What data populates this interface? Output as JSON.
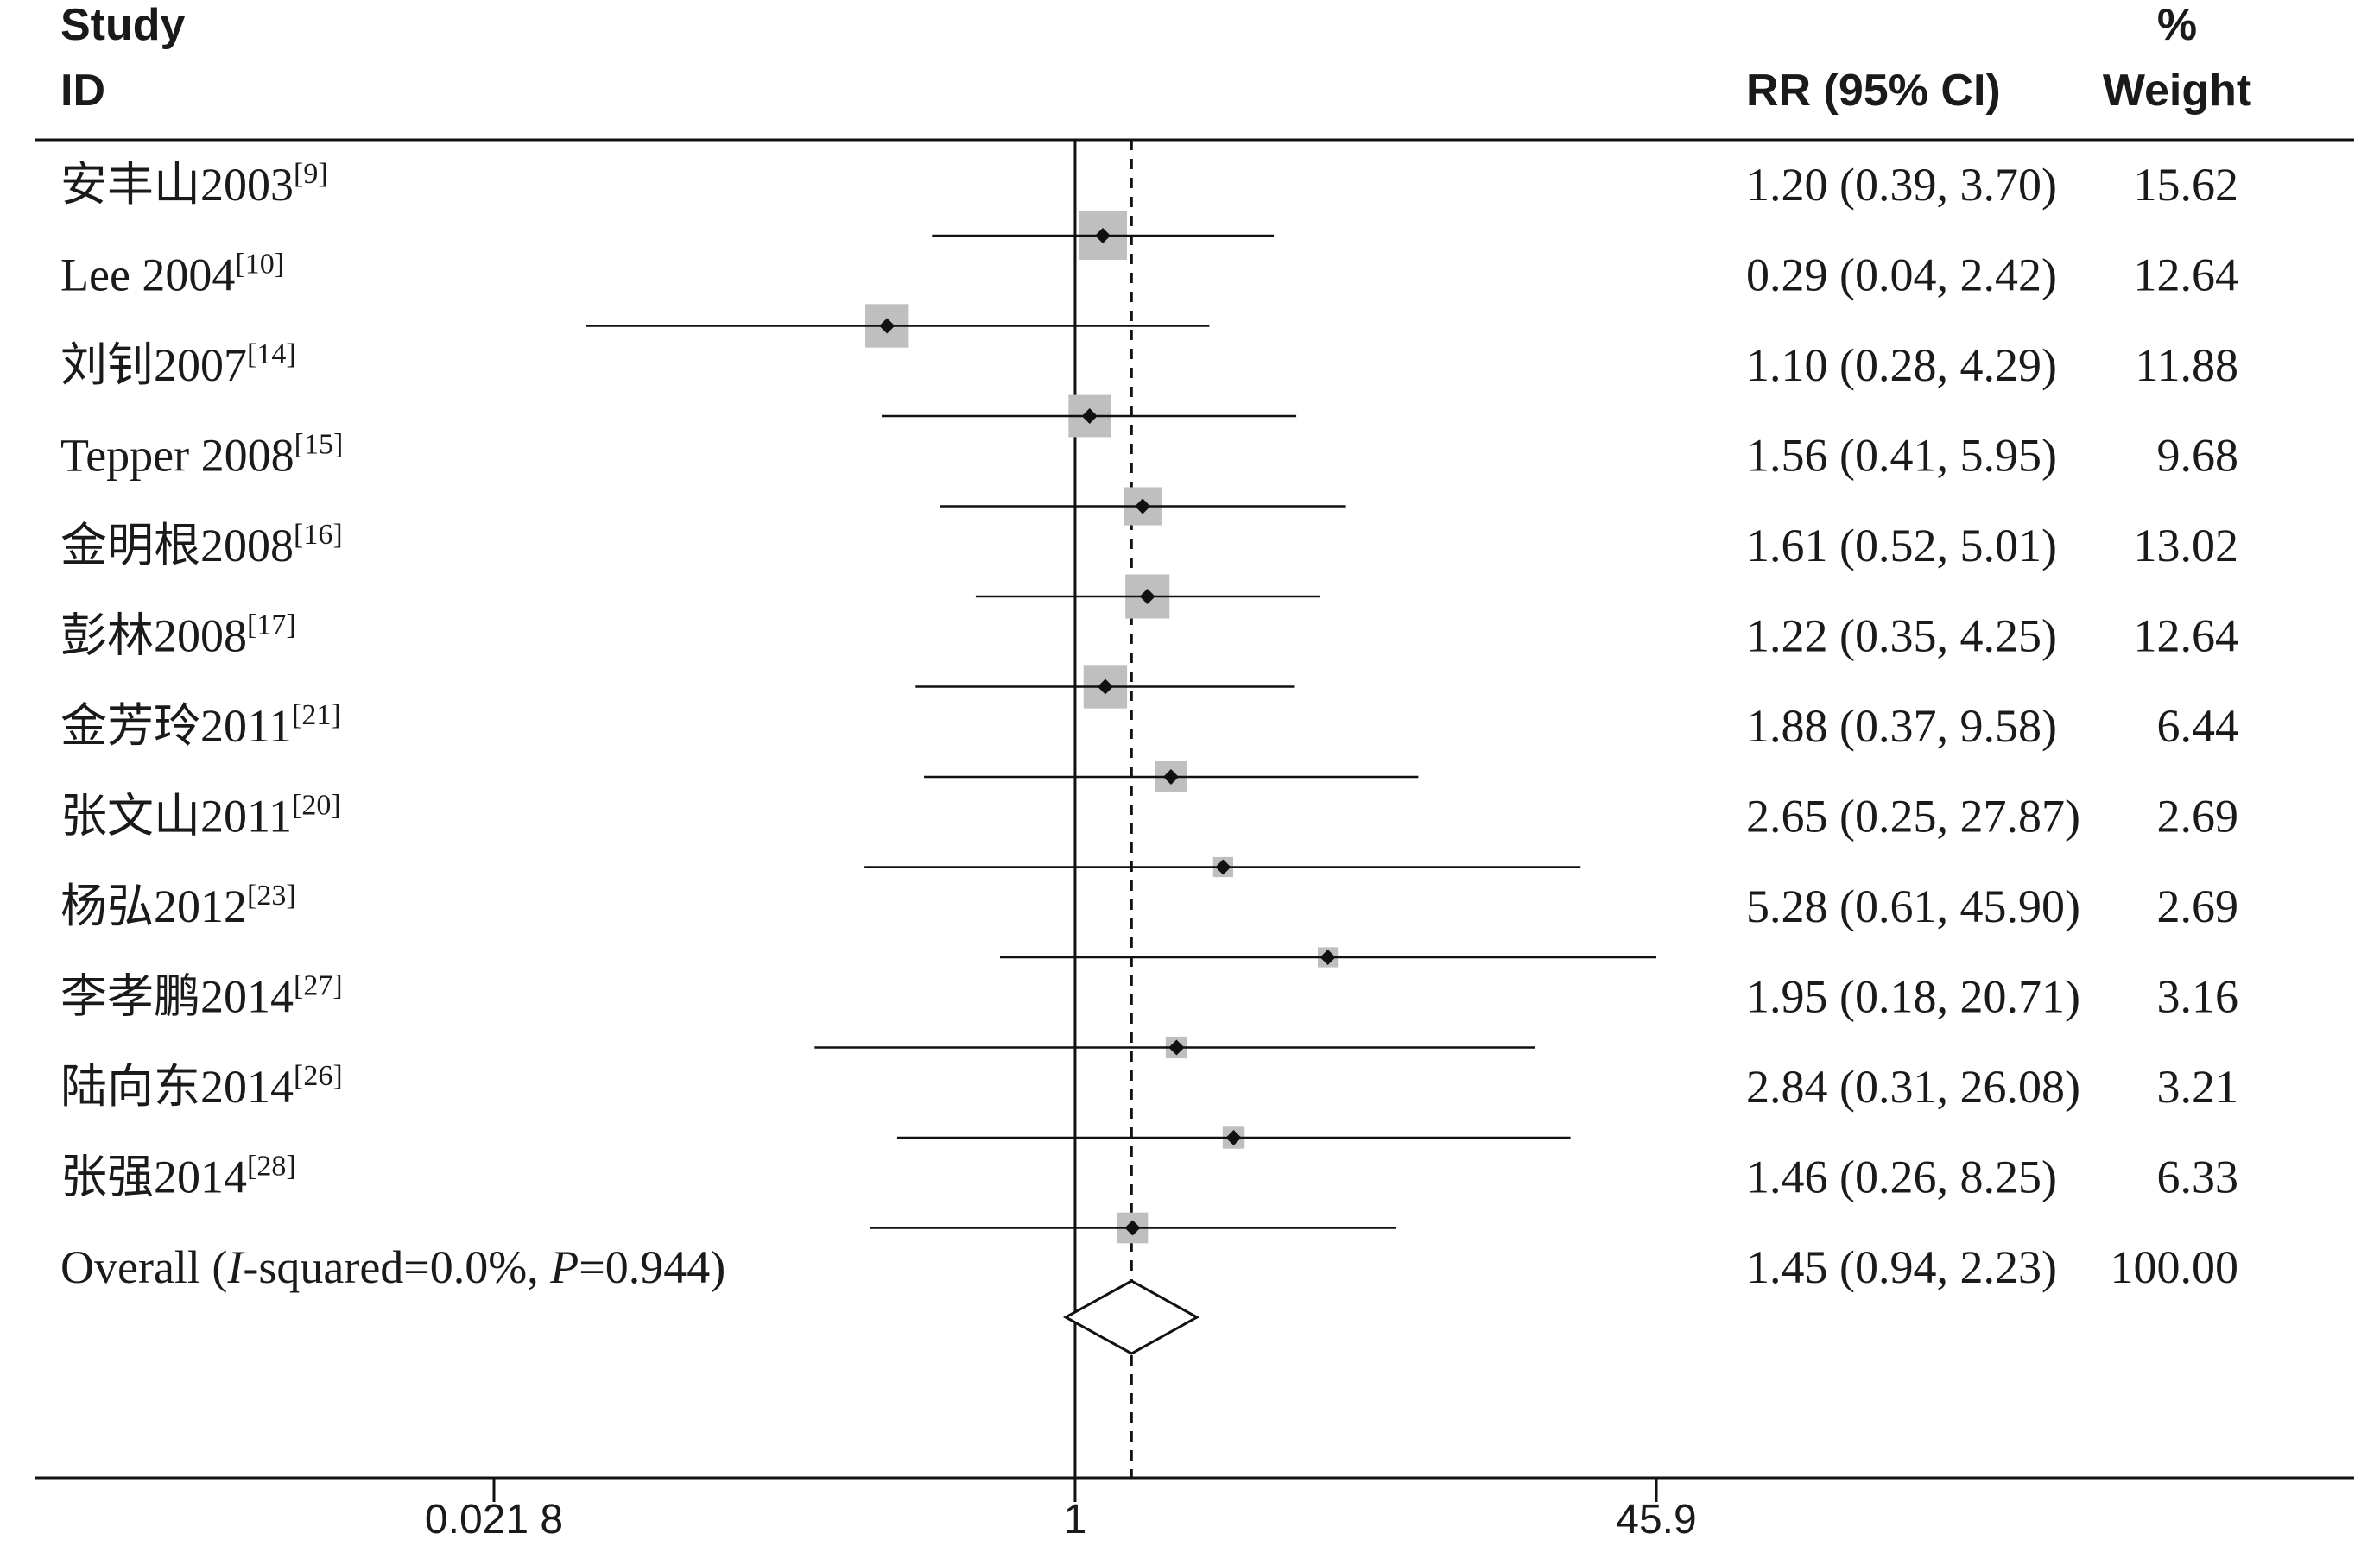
{
  "header": {
    "study_line1": "Study",
    "study_line2": "ID",
    "rr_label": "RR (95% CI)",
    "weight_line1": "%",
    "weight_line2": "Weight"
  },
  "chart_data": {
    "type": "forest",
    "scale": "log",
    "xlim": [
      0.0218,
      45.9
    ],
    "xticks": [
      0.0218,
      1,
      45.9
    ],
    "xtick_labels": [
      "0.021 8",
      "1",
      "45.9"
    ],
    "null_line": 1,
    "pooled_line": 1.45,
    "studies": [
      {
        "name": "安丰山2003",
        "ref": "[9]",
        "rr": 1.2,
        "lo": 0.39,
        "hi": 3.7,
        "rr_text": "1.20 (0.39, 3.70)",
        "weight": 15.62,
        "weight_text": "15.62"
      },
      {
        "name": "Lee 2004",
        "ref": "[10]",
        "rr": 0.29,
        "lo": 0.04,
        "hi": 2.42,
        "rr_text": "0.29 (0.04, 2.42)",
        "weight": 12.64,
        "weight_text": "12.64"
      },
      {
        "name": "刘钊2007",
        "ref": "[14]",
        "rr": 1.1,
        "lo": 0.28,
        "hi": 4.29,
        "rr_text": "1.10 (0.28, 4.29)",
        "weight": 11.88,
        "weight_text": "11.88"
      },
      {
        "name": "Tepper 2008",
        "ref": "[15]",
        "rr": 1.56,
        "lo": 0.41,
        "hi": 5.95,
        "rr_text": "1.56 (0.41, 5.95)",
        "weight": 9.68,
        "weight_text": "9.68"
      },
      {
        "name": "金明根2008",
        "ref": "[16]",
        "rr": 1.61,
        "lo": 0.52,
        "hi": 5.01,
        "rr_text": "1.61 (0.52, 5.01)",
        "weight": 13.02,
        "weight_text": "13.02"
      },
      {
        "name": "彭林2008",
        "ref": "[17]",
        "rr": 1.22,
        "lo": 0.35,
        "hi": 4.25,
        "rr_text": "1.22 (0.35, 4.25)",
        "weight": 12.64,
        "weight_text": "12.64"
      },
      {
        "name": "金芳玲2011",
        "ref": "[21]",
        "rr": 1.88,
        "lo": 0.37,
        "hi": 9.58,
        "rr_text": "1.88 (0.37, 9.58)",
        "weight": 6.44,
        "weight_text": "6.44"
      },
      {
        "name": "张文山2011",
        "ref": "[20]",
        "rr": 2.65,
        "lo": 0.25,
        "hi": 27.87,
        "rr_text": "2.65 (0.25, 27.87)",
        "weight": 2.69,
        "weight_text": "2.69"
      },
      {
        "name": "杨弘2012",
        "ref": "[23]",
        "rr": 5.28,
        "lo": 0.61,
        "hi": 45.9,
        "rr_text": "5.28 (0.61, 45.90)",
        "weight": 2.69,
        "weight_text": "2.69"
      },
      {
        "name": "李孝鹏2014",
        "ref": "[27]",
        "rr": 1.95,
        "lo": 0.18,
        "hi": 20.71,
        "rr_text": "1.95 (0.18, 20.71)",
        "weight": 3.16,
        "weight_text": "3.16"
      },
      {
        "name": "陆向东2014",
        "ref": "[26]",
        "rr": 2.84,
        "lo": 0.31,
        "hi": 26.08,
        "rr_text": "2.84 (0.31, 26.08)",
        "weight": 3.21,
        "weight_text": "3.21"
      },
      {
        "name": "张强2014",
        "ref": "[28]",
        "rr": 1.46,
        "lo": 0.26,
        "hi": 8.25,
        "rr_text": "1.46 (0.26, 8.25)",
        "weight": 6.33,
        "weight_text": "6.33"
      }
    ],
    "overall": {
      "label_prefix": "Overall (",
      "label_i": "I",
      "label_mid": "-squared=0.0%, ",
      "label_p": "P",
      "label_suffix": "=0.944)",
      "rr": 1.45,
      "lo": 0.94,
      "hi": 2.23,
      "rr_text": "1.45 (0.94, 2.23)",
      "weight_text": "100.00"
    }
  }
}
